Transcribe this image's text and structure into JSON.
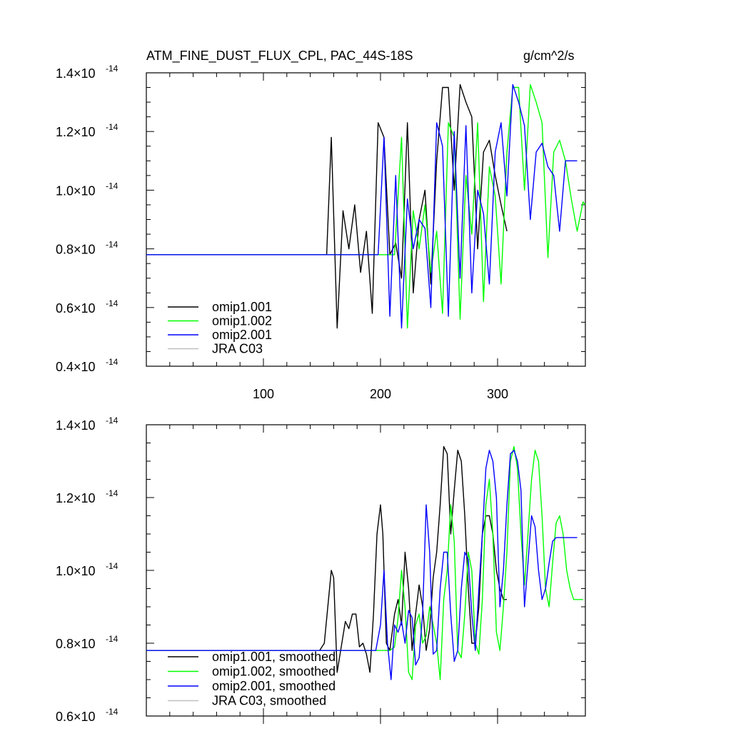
{
  "chart_data": [
    {
      "type": "line",
      "title": "ATM_FINE_DUST_FLUX_CPL, PAC_44S-18S",
      "units": "g/cm^2/s",
      "xlabel": "",
      "ylabel": "",
      "xlim": [
        0,
        375
      ],
      "ylim": [
        4e-15,
        1.4e-14
      ],
      "x_ticks": [
        100,
        200,
        300
      ],
      "x_tick_labels": [
        "100",
        "200",
        "300"
      ],
      "y_ticks": [
        0.4,
        0.6,
        0.8,
        1.0,
        1.2,
        1.4
      ],
      "y_tick_labels": [
        "0.4",
        "0.6",
        "0.8",
        "1.0",
        "1.2",
        "1.4"
      ],
      "y_multiplier": "×10",
      "y_exponent": "-14",
      "legend_position": "bottom-left",
      "series": [
        {
          "name": "omip1.001",
          "color": "#000000",
          "x": [
            0,
            154,
            158,
            163,
            168,
            173,
            178,
            183,
            188,
            193,
            198,
            203,
            208,
            213,
            218,
            223,
            228,
            233,
            238,
            243,
            248,
            253,
            258,
            263,
            268,
            273,
            278,
            283,
            288,
            293,
            298,
            303,
            308
          ],
          "y": [
            0.78,
            0.78,
            1.18,
            0.53,
            0.93,
            0.8,
            0.95,
            0.72,
            0.86,
            0.58,
            1.23,
            1.18,
            0.78,
            0.82,
            0.7,
            1.23,
            0.65,
            0.9,
            1.0,
            0.68,
            1.1,
            1.35,
            1.35,
            1.0,
            1.36,
            1.3,
            1.25,
            0.8,
            1.13,
            1.17,
            1.05,
            0.95,
            0.86
          ]
        },
        {
          "name": "omip1.002",
          "color": "#00ff00",
          "x": [
            0,
            212,
            218,
            223,
            228,
            233,
            238,
            243,
            248,
            253,
            258,
            263,
            268,
            273,
            278,
            283,
            288,
            293,
            298,
            303,
            308,
            313,
            318,
            323,
            328,
            333,
            338,
            343,
            348,
            353,
            358,
            363,
            368,
            373,
            375
          ],
          "y": [
            0.78,
            0.78,
            1.18,
            0.53,
            0.93,
            0.8,
            0.95,
            0.72,
            0.86,
            0.58,
            1.23,
            1.18,
            0.56,
            1.05,
            0.85,
            1.23,
            0.62,
            1.08,
            0.98,
            0.68,
            1.13,
            1.35,
            1.35,
            1.0,
            1.36,
            1.3,
            1.23,
            0.77,
            1.13,
            1.17,
            1.1,
            0.97,
            0.86,
            0.96,
            0.95
          ]
        },
        {
          "name": "omip2.001",
          "color": "#0000ff",
          "x": [
            0,
            198,
            203,
            208,
            213,
            218,
            223,
            228,
            233,
            238,
            243,
            248,
            253,
            258,
            263,
            268,
            273,
            278,
            283,
            288,
            293,
            298,
            303,
            308,
            313,
            318,
            323,
            328,
            333,
            338,
            343,
            348,
            353,
            358,
            363,
            368
          ],
          "y": [
            0.78,
            0.78,
            1.18,
            0.57,
            1.05,
            0.53,
            0.97,
            0.8,
            0.9,
            0.87,
            0.6,
            1.23,
            1.15,
            0.57,
            1.2,
            0.7,
            1.22,
            0.65,
            1.0,
            0.92,
            0.68,
            1.13,
            1.23,
            0.98,
            1.36,
            1.3,
            1.22,
            0.9,
            1.13,
            1.16,
            1.08,
            1.05,
            0.86,
            1.1,
            1.1,
            1.1
          ]
        },
        {
          "name": "JRA C03",
          "color": "#c0c0c0",
          "x": [],
          "y": []
        }
      ]
    },
    {
      "type": "line",
      "title": "",
      "xlabel": "",
      "ylabel": "",
      "xlim": [
        0,
        375
      ],
      "ylim": [
        6e-15,
        1.4e-14
      ],
      "x_ticks": [
        100,
        200,
        300
      ],
      "x_tick_labels": [],
      "y_ticks": [
        0.6,
        0.8,
        1.0,
        1.2,
        1.4
      ],
      "y_tick_labels": [
        "0.6",
        "0.8",
        "1.0",
        "1.2",
        "1.4"
      ],
      "y_multiplier": "×10",
      "y_exponent": "-14",
      "legend_position": "bottom-left",
      "series": [
        {
          "name": "omip1.001, smoothed",
          "color": "#000000",
          "x": [
            0,
            148,
            152,
            155,
            158,
            160,
            163,
            166,
            170,
            173,
            176,
            179,
            182,
            185,
            188,
            191,
            194,
            197,
            200,
            202,
            205,
            208,
            212,
            215,
            218,
            221,
            224,
            227,
            230,
            233,
            236,
            239,
            242,
            245,
            248,
            251,
            254,
            257,
            260,
            263,
            266,
            269,
            272,
            275,
            278,
            281,
            284,
            287,
            290,
            293,
            296,
            299,
            302,
            305,
            308
          ],
          "y": [
            0.78,
            0.78,
            0.8,
            0.9,
            1.0,
            0.98,
            0.72,
            0.78,
            0.86,
            0.84,
            0.88,
            0.88,
            0.79,
            0.8,
            0.77,
            0.72,
            0.88,
            1.1,
            1.18,
            1.1,
            0.8,
            0.78,
            0.88,
            0.92,
            0.85,
            1.05,
            0.95,
            0.78,
            0.88,
            0.96,
            0.9,
            0.78,
            0.84,
            0.98,
            1.05,
            1.18,
            1.34,
            1.32,
            1.1,
            1.22,
            1.33,
            1.3,
            1.15,
            0.95,
            0.8,
            0.8,
            0.9,
            1.1,
            1.15,
            1.15,
            1.1,
            1.0,
            0.95,
            0.92,
            0.92
          ]
        },
        {
          "name": "omip1.002, smoothed",
          "color": "#00ff00",
          "x": [
            0,
            208,
            212,
            215,
            218,
            221,
            224,
            227,
            230,
            233,
            236,
            239,
            242,
            245,
            248,
            251,
            254,
            257,
            260,
            263,
            266,
            269,
            272,
            275,
            278,
            281,
            284,
            287,
            290,
            293,
            296,
            299,
            302,
            305,
            308,
            311,
            314,
            317,
            320,
            323,
            326,
            329,
            332,
            335,
            338,
            341,
            344,
            347,
            350,
            353,
            356,
            359,
            362,
            365,
            368,
            371,
            373
          ],
          "y": [
            0.78,
            0.78,
            0.79,
            0.87,
            1.0,
            0.9,
            0.72,
            0.7,
            0.85,
            0.88,
            0.8,
            0.82,
            0.9,
            0.85,
            0.8,
            0.7,
            0.92,
            1.0,
            1.18,
            1.08,
            0.78,
            0.76,
            0.88,
            1.05,
            1.0,
            0.8,
            0.77,
            0.92,
            1.18,
            1.25,
            1.1,
            0.83,
            0.78,
            0.9,
            1.05,
            1.3,
            1.34,
            1.28,
            1.1,
            0.96,
            1.1,
            1.25,
            1.33,
            1.3,
            1.15,
            0.95,
            0.9,
            1.02,
            1.13,
            1.15,
            1.1,
            1.0,
            0.95,
            0.92,
            0.92,
            0.92,
            0.92
          ]
        },
        {
          "name": "omip2.001, smoothed",
          "color": "#0000ff",
          "x": [
            0,
            196,
            200,
            203,
            206,
            209,
            212,
            215,
            218,
            221,
            224,
            227,
            230,
            233,
            236,
            239,
            242,
            245,
            248,
            251,
            254,
            257,
            260,
            263,
            266,
            269,
            272,
            275,
            278,
            281,
            284,
            287,
            290,
            293,
            296,
            299,
            302,
            305,
            308,
            311,
            314,
            317,
            320,
            323,
            326,
            329,
            332,
            335,
            338,
            341,
            344,
            347,
            350,
            353,
            356,
            359,
            362,
            365,
            368
          ],
          "y": [
            0.78,
            0.78,
            0.85,
            1.0,
            0.8,
            0.7,
            0.85,
            0.83,
            0.86,
            0.8,
            0.89,
            0.87,
            0.74,
            0.76,
            0.88,
            1.18,
            1.05,
            0.77,
            0.78,
            0.95,
            1.05,
            1.05,
            0.88,
            0.75,
            0.78,
            0.95,
            1.05,
            1.03,
            0.88,
            0.78,
            0.95,
            1.1,
            1.28,
            1.33,
            1.3,
            1.2,
            0.9,
            1.0,
            1.18,
            1.32,
            1.33,
            1.3,
            1.22,
            0.9,
            1.02,
            1.15,
            1.12,
            1.0,
            0.92,
            0.95,
            1.02,
            1.08,
            1.09,
            1.09,
            1.09,
            1.09,
            1.09,
            1.09,
            1.09
          ]
        },
        {
          "name": "JRA C03, smoothed",
          "color": "#c0c0c0",
          "x": [],
          "y": []
        }
      ]
    }
  ]
}
